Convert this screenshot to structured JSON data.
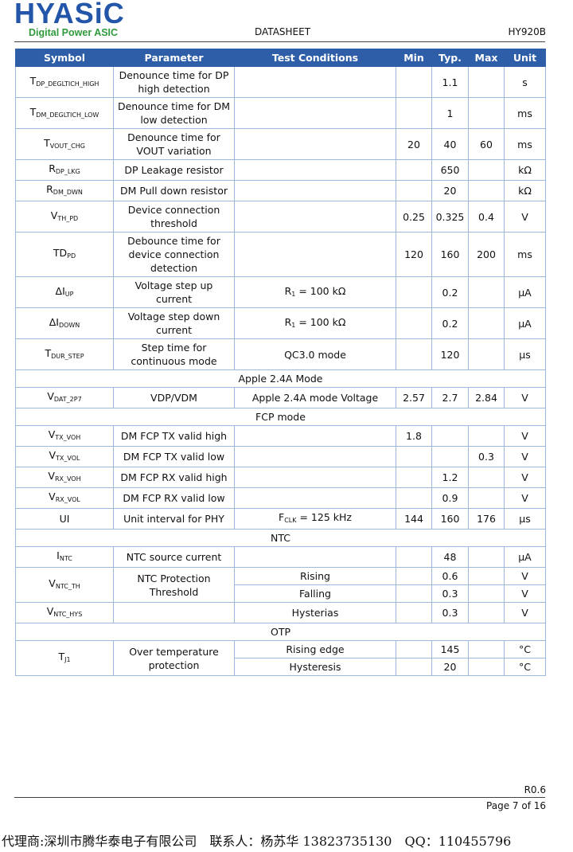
{
  "header": {
    "logo": "HYASiC",
    "tagline": "Digital Power ASIC",
    "doc_type": "DATASHEET",
    "part": "HY920B"
  },
  "table": {
    "columns": [
      "Symbol",
      "Parameter",
      "Test Conditions",
      "Min",
      "Typ.",
      "Max",
      "Unit"
    ],
    "rows": [
      {
        "symbol": {
          "base": "T",
          "sub": "DP_DEGLTICH_HIGH"
        },
        "parameter": "Denounce time for DP high detection",
        "typ": "1.1",
        "unit": "s"
      },
      {
        "symbol": {
          "base": "T",
          "sub": "DM_DEGLTICH_LOW"
        },
        "parameter": "Denounce time for DM low detection",
        "typ": "1",
        "unit": "ms"
      },
      {
        "symbol": {
          "base": "T",
          "sub": "VOUT_CHG"
        },
        "parameter": "Denounce time for VOUT variation",
        "min": "20",
        "typ": "40",
        "max": "60",
        "unit": "ms"
      },
      {
        "symbol": {
          "base": "R",
          "sub": "DP_LKG"
        },
        "parameter": "DP Leakage resistor",
        "typ": "650",
        "unit": "kΩ"
      },
      {
        "symbol": {
          "base": "R",
          "sub": "DM_DWN"
        },
        "parameter": "DM Pull down resistor",
        "typ": "20",
        "unit": "kΩ"
      },
      {
        "symbol": {
          "base": "V",
          "sub": "TH_PD"
        },
        "parameter": "Device connection threshold",
        "min": "0.25",
        "typ": "0.325",
        "max": "0.4",
        "unit": "V"
      },
      {
        "symbol": {
          "base": "TD",
          "sub": "PD"
        },
        "parameter": "Debounce time for device connection detection",
        "min": "120",
        "typ": "160",
        "max": "200",
        "unit": "ms"
      },
      {
        "symbol": {
          "base": "ΔI",
          "sub": "UP"
        },
        "parameter": "Voltage step up current",
        "conditions": {
          "base": "R",
          "sub": "1",
          "rest": " = 100 kΩ"
        },
        "typ": "0.2",
        "unit": "µA"
      },
      {
        "symbol": {
          "base": "ΔI",
          "sub": "DOWN"
        },
        "parameter": "Voltage step down current",
        "conditions": {
          "base": "R",
          "sub": "1",
          "rest": " = 100 kΩ"
        },
        "typ": "0.2",
        "unit": "µA"
      },
      {
        "symbol": {
          "base": "T",
          "sub": "DUR_STEP"
        },
        "parameter": "Step time for continuous mode",
        "conditions": "QC3.0 mode",
        "typ": "120",
        "unit": "µs"
      },
      {
        "section": "Apple 2.4A Mode"
      },
      {
        "symbol": {
          "base": "V",
          "sub": "DAT_2P7"
        },
        "parameter": "VDP/VDM",
        "conditions": "Apple 2.4A mode Voltage",
        "min": "2.57",
        "typ": "2.7",
        "max": "2.84",
        "unit": "V"
      },
      {
        "section": "FCP mode"
      },
      {
        "symbol": {
          "base": "V",
          "sub": "TX_VOH"
        },
        "parameter": "DM FCP TX valid high",
        "min": "1.8",
        "unit": "V"
      },
      {
        "symbol": {
          "base": "V",
          "sub": "TX_VOL"
        },
        "parameter": "DM FCP TX valid low",
        "max": "0.3",
        "unit": "V"
      },
      {
        "symbol": {
          "base": "V",
          "sub": "RX_VOH"
        },
        "parameter": "DM FCP RX valid high",
        "typ": "1.2",
        "unit": "V"
      },
      {
        "symbol": {
          "base": "V",
          "sub": "RX_VOL"
        },
        "parameter": "DM FCP RX valid low",
        "typ": "0.9",
        "unit": "V"
      },
      {
        "symbol": {
          "base": "UI"
        },
        "parameter": "Unit interval for PHY",
        "conditions": {
          "base": "F",
          "sub": "CLK",
          "rest": " = 125 kHz"
        },
        "min": "144",
        "typ": "160",
        "max": "176",
        "unit": "µs"
      },
      {
        "section": "NTC"
      },
      {
        "symbol": {
          "base": "I",
          "sub": "NTC"
        },
        "parameter": "NTC source current",
        "typ": "48",
        "unit": "µA"
      },
      {
        "symbol": {
          "base": "V",
          "sub": "NTC_TH"
        },
        "parameter": "NTC Protection Threshold",
        "cases": [
          {
            "conditions": "Rising",
            "typ": "0.6",
            "unit": "V"
          },
          {
            "conditions": "Falling",
            "typ": "0.3",
            "unit": "V"
          }
        ]
      },
      {
        "symbol": {
          "base": "V",
          "sub": "NTC_HYS"
        },
        "conditions": "Hysterias",
        "typ": "0.3",
        "unit": "V"
      },
      {
        "section": "OTP"
      },
      {
        "symbol": {
          "base": "T",
          "sub": "J1"
        },
        "parameter": "Over temperature protection",
        "cases": [
          {
            "conditions": "Rising edge",
            "typ": "145",
            "unit": "°C"
          },
          {
            "conditions": "Hysteresis",
            "typ": "20",
            "unit": "°C"
          }
        ]
      }
    ]
  },
  "footer": {
    "revision": "R0.6",
    "page": "Page 7 of 16",
    "agent": "代理商:深圳市腾华泰电子有限公司　联系人：杨苏华 13823735130　QQ：110455796"
  }
}
